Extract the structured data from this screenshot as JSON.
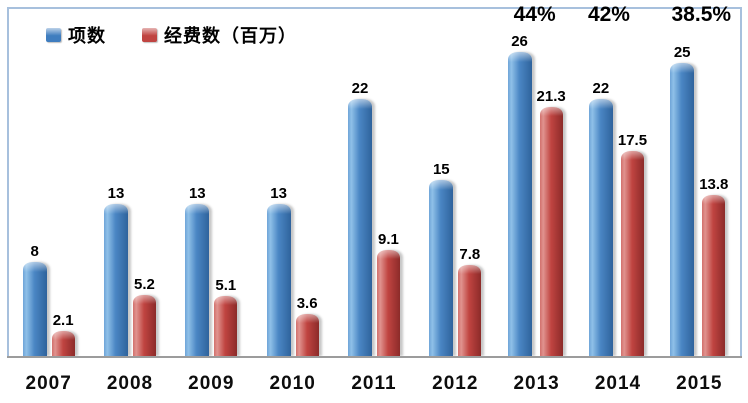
{
  "chart_data": {
    "type": "bar",
    "title": "",
    "categories": [
      "2007",
      "2008",
      "2009",
      "2010",
      "2011",
      "2012",
      "2013",
      "2014",
      "2015"
    ],
    "series": [
      {
        "name": "项数",
        "color": "#3f7dbf",
        "values": [
          8,
          13,
          13,
          13,
          22,
          15,
          26,
          22,
          25
        ]
      },
      {
        "name": "经费数（百万）",
        "color": "#c04441",
        "values": [
          2.1,
          5.2,
          5.1,
          3.6,
          9.1,
          7.8,
          21.3,
          17.5,
          13.8
        ]
      }
    ],
    "annotations": [
      {
        "category": "2013",
        "text": "44%",
        "dx": -2
      },
      {
        "category": "2014",
        "text": "42%",
        "dx": -9
      },
      {
        "category": "2015",
        "text": "38.5%",
        "dx": 2
      }
    ],
    "xlabel": "",
    "ylabel": "",
    "ylim": [
      0,
      29.74
    ],
    "grid": false,
    "legend_position": "top-left",
    "data_labels": true
  },
  "legend": {
    "items": [
      {
        "label": "项数",
        "color": "#3f7dbf"
      },
      {
        "label": "经费数（百万）",
        "color": "#c04441"
      }
    ]
  },
  "colors": {
    "bar_blue": "#3f7dbf",
    "bar_red": "#c04441",
    "frame_border": "#a7c0dd",
    "axis_line": "#9c9c9c",
    "text": "#000000",
    "background": "#ffffff"
  }
}
